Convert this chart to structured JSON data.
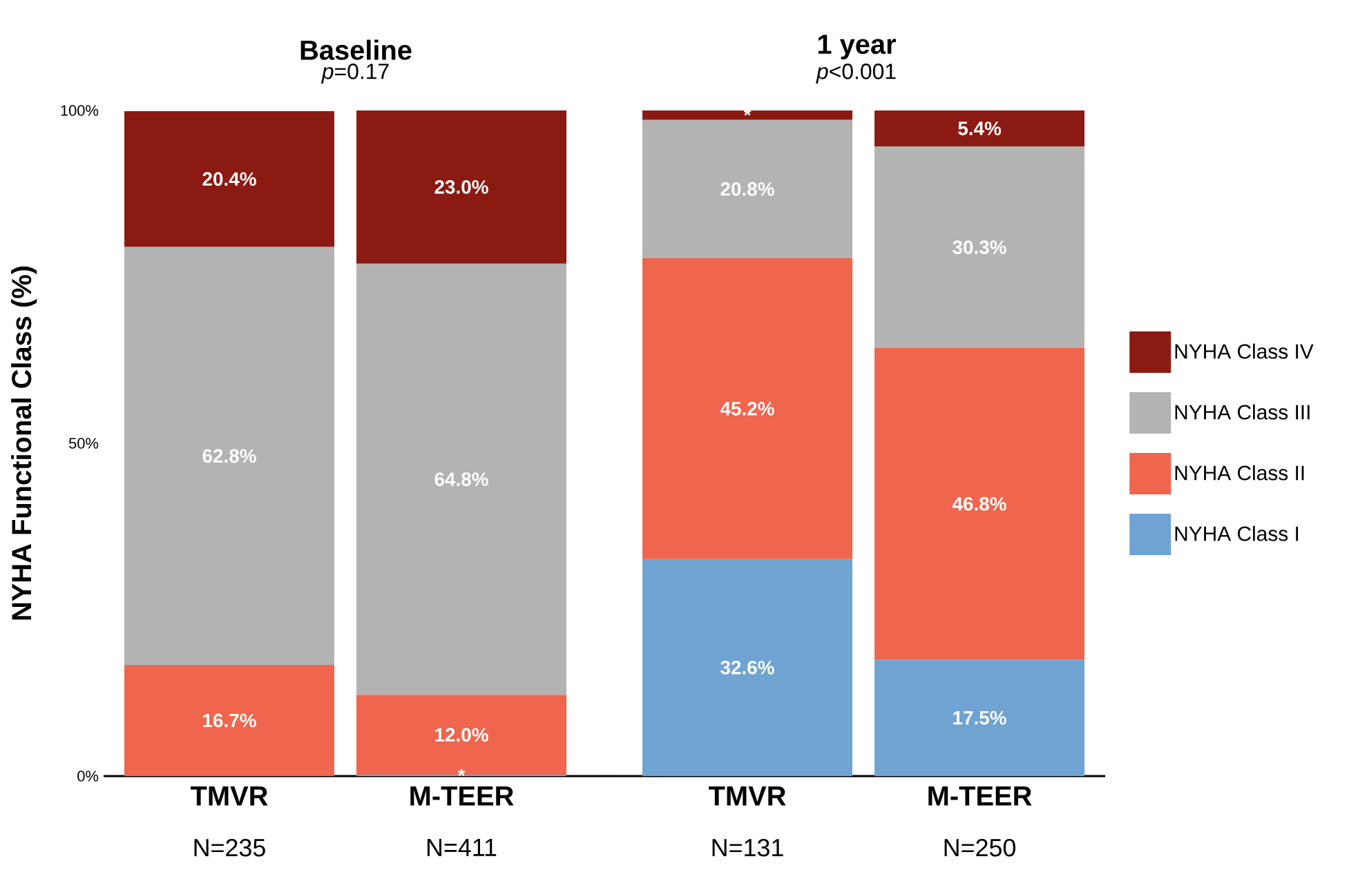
{
  "chart_data": [
    {
      "type": "bar",
      "title": "Baseline",
      "subtitle": "*p*=0.17",
      "ylabel": "NYHA Functional Class (%)",
      "stacked": true,
      "categories": [
        "TMVR",
        "M-TEER"
      ],
      "annotations": [
        "N=235",
        "N=411"
      ],
      "ylim": [
        0,
        100
      ],
      "yticks": [
        {
          "value": 0,
          "label": "0%"
        },
        {
          "value": 50,
          "label": "50%"
        },
        {
          "value": 100,
          "label": "100%"
        }
      ],
      "series": [
        {
          "color": "#6ea3d2",
          "values": [
            null,
            0.2
          ],
          "value_labels": [
            null,
            "*"
          ]
        },
        {
          "color": "#f0654d",
          "values": [
            16.7,
            12.0
          ],
          "value_labels": [
            "16.7%",
            "12.0%"
          ]
        },
        {
          "color": "#b3b3b3",
          "values": [
            62.8,
            64.8
          ],
          "value_labels": [
            "62.8%",
            "64.8%"
          ]
        },
        {
          "color": "#8b1a12",
          "values": [
            20.4,
            23.0
          ],
          "value_labels": [
            "20.4%",
            "23.0%"
          ]
        }
      ]
    },
    {
      "type": "bar",
      "title": "1 year",
      "subtitle": "*p*<0.001",
      "stacked": true,
      "categories": [
        "TMVR",
        "M-TEER"
      ],
      "annotations": [
        "N=131",
        "N=250"
      ],
      "ylim": [
        0,
        100
      ],
      "tick_labels": "x",
      "legend": "right",
      "series": [
        {
          "name": "NYHA Class I",
          "color": "#6ea3d2",
          "values": [
            32.6,
            17.5
          ],
          "value_labels": [
            "32.6%",
            "17.5%"
          ]
        },
        {
          "name": "NYHA Class II",
          "color": "#f0654d",
          "values": [
            45.2,
            46.8
          ],
          "value_labels": [
            "45.2%",
            "46.8%"
          ]
        },
        {
          "name": "NYHA Class III",
          "color": "#b3b3b3",
          "values": [
            20.8,
            30.3
          ],
          "value_labels": [
            "20.8%",
            "30.3%"
          ]
        },
        {
          "name": "NYHA Class IV",
          "color": "#8b1a12",
          "values": [
            1.4,
            5.4
          ],
          "value_labels": [
            "*",
            "5.4%"
          ]
        }
      ]
    }
  ]
}
